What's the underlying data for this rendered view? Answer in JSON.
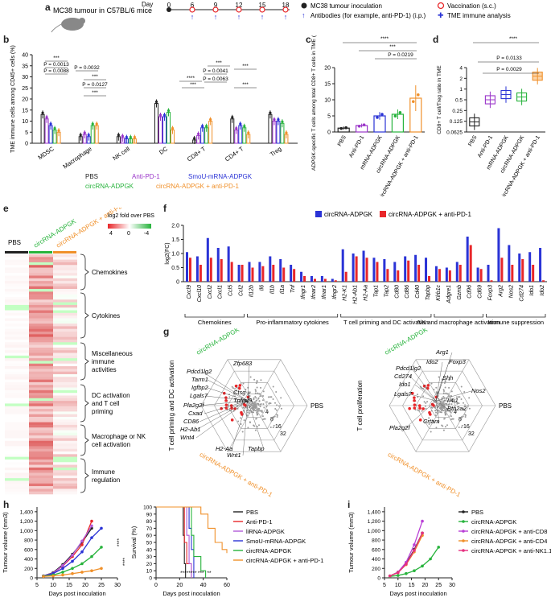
{
  "panel_labels": [
    "a",
    "b",
    "c",
    "d",
    "e",
    "f",
    "g",
    "h",
    "i"
  ],
  "colors": {
    "pbs": "#222222",
    "anti_pd1": "#9a35c9",
    "smou": "#2a33d6",
    "circ": "#27b33c",
    "combo": "#f0902a",
    "red": "#e8272a",
    "lirna": "#b25ad9",
    "cd8": "#b93fd6",
    "cd4": "#f0902a",
    "nk": "#e6307f"
  },
  "panel_a": {
    "mouse_label": "MC38 tumour in C57BL/6 mice",
    "day_label": "Day",
    "days": [
      "0",
      "6",
      "9",
      "12",
      "15",
      "18"
    ],
    "legend": [
      "MC38 tumour inoculation",
      "Antibodies (for example, anti-PD-1) (i.p.)",
      "Vaccination (s.c.)",
      "TME immune analysis"
    ]
  },
  "chart_data": [
    {
      "id": "b",
      "type": "bar",
      "ylabel": "TME immune cells among CD45+ cells (%)",
      "ylim": [
        0,
        40
      ],
      "yticks": [
        "0",
        "5",
        "10",
        "15",
        "20",
        "25",
        "30",
        "35",
        "40"
      ],
      "categories": [
        "MDSC",
        "Macrophage",
        "NK cell",
        "DC",
        "CD8+ T",
        "CD4+ T",
        "Treg"
      ],
      "series": [
        {
          "name": "PBS",
          "values": [
            13,
            3,
            3,
            18,
            1.5,
            11,
            13
          ]
        },
        {
          "name": "Anti-PD-1",
          "values": [
            11,
            4,
            2.5,
            12,
            3.5,
            6,
            10
          ]
        },
        {
          "name": "SmoU-mRNA-ADPGK",
          "values": [
            8,
            3,
            2,
            12,
            7,
            8,
            10
          ]
        },
        {
          "name": "circRNA-ADPGK",
          "values": [
            6,
            8,
            2,
            14,
            7,
            7,
            9
          ]
        },
        {
          "name": "circRNA-ADPGK + anti-PD-1",
          "values": [
            5,
            8,
            2,
            6,
            10,
            4,
            4
          ]
        }
      ],
      "pvalues": [
        "***",
        "P = 0.0013",
        "P = 0.0088",
        "P = 0.0032",
        "***",
        "P = 0.0127",
        "***",
        "****",
        "***",
        "***",
        "P = 0.0041",
        "P = 0.0063",
        "***",
        "***"
      ],
      "legend": [
        "PBS",
        "Anti-PD-1",
        "SmoU-mRNA-ADPGK",
        "circRNA-ADPGK",
        "circRNA-ADPGK + anti-PD-1"
      ]
    },
    {
      "id": "c",
      "type": "bar",
      "ylabel": "ADPGK-specific T cells among total CD8+ T cells in TME (%)",
      "ylim": [
        0,
        20
      ],
      "yticks": [
        "0",
        "5",
        "10",
        "15",
        "20"
      ],
      "categories": [
        "PBS",
        "Anti-PD-1",
        "mRNA-ADPGK",
        "circRNA-ADPGK",
        "circRNA-ADPGK + anti-PD-1"
      ],
      "values": [
        1.2,
        2.0,
        5.0,
        5.5,
        10.5
      ],
      "errors": [
        0.5,
        0.6,
        1.2,
        1.5,
        4.0
      ],
      "pvalues": [
        "****",
        "***",
        "P = 0.0219"
      ]
    },
    {
      "id": "d",
      "type": "box",
      "ylabel": "CD8+ T cell/Treg ratio in TME",
      "yscale": "log2",
      "yticks": [
        "0.0625",
        "0.125",
        "0.25",
        "0.5",
        "1",
        "2",
        "4"
      ],
      "categories": [
        "PBS",
        "Anti-PD-1",
        "mRNA-ADPGK",
        "circRNA-ADPGK",
        "circRNA-ADPGK + anti-PD-1"
      ],
      "medians": [
        0.12,
        0.5,
        0.7,
        0.6,
        2.3
      ],
      "pvalues": [
        "****",
        "P = 0.0133",
        "P = 0.0029"
      ]
    },
    {
      "id": "e",
      "type": "heatmap",
      "columns": [
        "PBS",
        "circRNA-ADPGK",
        "circRNA-ADPGK + anti-PD-1"
      ],
      "legend_title": "log2 fold over PBS",
      "legend_ticks": [
        "4",
        "0",
        "-4"
      ],
      "groups": [
        "Chemokines",
        "Cytokines",
        "Miscellaneous immune activities",
        "DC activation and T cell priming",
        "Macrophage or NK cell activation",
        "Immune regulation"
      ]
    },
    {
      "id": "f",
      "type": "bar",
      "ylabel": "log2(FC)",
      "ylim": [
        0,
        2
      ],
      "yticks": [
        "0",
        "0.5",
        "1.0",
        "1.5",
        "2.0"
      ],
      "categories": [
        "Cxcl9",
        "Cxcl10",
        "Cxcl2",
        "Cxcl1",
        "Ccl5",
        "Ccl2",
        "Il12b",
        "Il6",
        "Il1b",
        "Il1a",
        "Tnf",
        "Ifngr1",
        "Ifnar2",
        "Ifnar1",
        "Ifngr2",
        "H2-K1",
        "H2-Ab1",
        "H2-Aa",
        "Tap1",
        "Tap2",
        "Cd80",
        "Cd86",
        "Cd40",
        "Tapbp",
        "Klrb1c",
        "Adgre1",
        "Gzmb",
        "Cd96",
        "Cd69",
        "Foxp3",
        "Arg2",
        "Nos2",
        "Cd274",
        "Ido1",
        "Ido2"
      ],
      "series": [
        {
          "name": "circRNA-ADPGK",
          "values": [
            1.05,
            0.9,
            1.55,
            1.2,
            1.25,
            0.6,
            0.7,
            0.7,
            0.9,
            0.8,
            0.6,
            0.35,
            0.2,
            0.2,
            0.1,
            1.15,
            1.0,
            1.1,
            0.85,
            0.8,
            0.7,
            0.9,
            0.95,
            0.85,
            0.55,
            0.5,
            0.7,
            1.6,
            0.5,
            0.6,
            1.9,
            1.3,
            1.0,
            1.05,
            1.2
          ]
        },
        {
          "name": "circRNA-ADPGK + anti-PD-1",
          "values": [
            0.85,
            0.6,
            0.85,
            0.8,
            0.7,
            0.6,
            0.5,
            0.55,
            0.6,
            0.5,
            0.45,
            0.2,
            0.1,
            0.1,
            0.05,
            0.35,
            0.9,
            0.85,
            0.7,
            0.45,
            0.4,
            0.75,
            0.6,
            0.2,
            0.45,
            0.4,
            0.6,
            1.3,
            0.45,
            0.05,
            0.85,
            0.6,
            0.8,
            0.6,
            0.05
          ]
        }
      ],
      "groups": [
        "Chemokines",
        "Pro-inflammatory cytokines",
        "T cell priming and DC activation",
        "NK and macrophage activation",
        "Immune suppression"
      ]
    },
    {
      "id": "g1",
      "type": "scatter",
      "title": "T cell priming and DC activation",
      "axes": [
        "circRNA-ADPGK",
        "PBS",
        "circRNA-ADPGK + anti-PD-1"
      ],
      "rings": [
        "4",
        "8",
        "16",
        "32"
      ],
      "labels": [
        "Zfp683",
        "Pdcd1lg2",
        "Tarm1",
        "Igfbp2",
        "Lgals7",
        "Ctsg",
        "Pla2g2f",
        "Cxad",
        "CD86",
        "H2-Ab1",
        "Wnt4",
        "H2-Aa",
        "Wnt1",
        "Tapbp",
        "Tnfrsf9"
      ]
    },
    {
      "id": "g2",
      "type": "scatter",
      "title": "T cell proliferation",
      "axes": [
        "circRNA-ADPGK",
        "PBS",
        "circRNA-ADPGK + anti-PD-1"
      ],
      "rings": [
        "4",
        "8",
        "16",
        "32"
      ],
      "labels": [
        "Arg1",
        "Ido2",
        "Foxp3",
        "Pdcd1lg2",
        "Cd274",
        "Ido1",
        "Lgals7",
        "Shh",
        "Nos2",
        "Il4i1",
        "Btn2a2",
        "Pla2g2f",
        "Crtam"
      ]
    },
    {
      "id": "h1",
      "type": "line",
      "xlabel": "Days post inoculation",
      "ylabel": "Tumour volume (mm3)",
      "xlim": [
        5,
        30
      ],
      "ylim": [
        0,
        1500
      ],
      "xticks": [
        "5",
        "10",
        "15",
        "20",
        "25",
        "30"
      ],
      "yticks": [
        "0",
        "200",
        "400",
        "600",
        "800",
        "1,000",
        "1,200",
        "1,400"
      ],
      "x": [
        7,
        10,
        13,
        16,
        19,
        22,
        25
      ],
      "series": [
        {
          "name": "PBS",
          "values": [
            40,
            110,
            280,
            500,
            750,
            1050,
            null
          ]
        },
        {
          "name": "Anti-PD-1",
          "values": [
            40,
            100,
            250,
            450,
            700,
            1200,
            null
          ]
        },
        {
          "name": "liRNA-ADPGK",
          "values": [
            40,
            100,
            260,
            480,
            780,
            1100,
            null
          ]
        },
        {
          "name": "SmoU-mRNA-ADPGK",
          "values": [
            40,
            90,
            200,
            350,
            550,
            850,
            1050
          ]
        },
        {
          "name": "circRNA-ADPGK",
          "values": [
            35,
            60,
            120,
            200,
            300,
            450,
            650
          ]
        },
        {
          "name": "circRNA-ADPGK + anti-PD-1",
          "values": [
            30,
            40,
            60,
            90,
            120,
            150,
            200
          ]
        }
      ],
      "annotations": [
        "****",
        "****"
      ]
    },
    {
      "id": "h2",
      "type": "line",
      "xlabel": "Days post inoculation",
      "ylabel": "Survival (%)",
      "xlim": [
        0,
        60
      ],
      "ylim": [
        0,
        100
      ],
      "xticks": [
        "0",
        "20",
        "40",
        "60"
      ],
      "yticks": [
        "0",
        "10",
        "20",
        "30",
        "40",
        "50",
        "60",
        "70",
        "80",
        "90",
        "100"
      ],
      "legend": [
        "PBS",
        "Anti-PD-1",
        "liRNA-ADPGK",
        "SmoU-mRNA-ADPGK",
        "circRNA-ADPGK",
        "circRNA-ADPGK + anti-PD-1"
      ],
      "annotations": [
        "****",
        "****",
        "***",
        "**"
      ]
    },
    {
      "id": "i",
      "type": "line",
      "xlabel": "Days post inoculation",
      "ylabel": "Tumour volume (mm3)",
      "xlim": [
        5,
        30
      ],
      "ylim": [
        0,
        1500
      ],
      "xticks": [
        "5",
        "10",
        "15",
        "20",
        "25",
        "30"
      ],
      "yticks": [
        "0",
        "200",
        "400",
        "600",
        "800",
        "1,000",
        "1,200",
        "1,400"
      ],
      "x": [
        7,
        10,
        13,
        16,
        19,
        22,
        25
      ],
      "series": [
        {
          "name": "PBS",
          "values": [
            40,
            120,
            300,
            600,
            950,
            null,
            null
          ]
        },
        {
          "name": "circRNA-ADPGK",
          "values": [
            30,
            50,
            90,
            150,
            250,
            400,
            650
          ]
        },
        {
          "name": "circRNA-ADPGK + anti-CD8",
          "values": [
            40,
            120,
            330,
            700,
            1200,
            null,
            null
          ]
        },
        {
          "name": "circRNA-ADPGK + anti-CD4",
          "values": [
            40,
            110,
            280,
            550,
            900,
            null,
            null
          ]
        },
        {
          "name": "circRNA-ADPGK + anti-NK1.1",
          "values": [
            40,
            110,
            290,
            580,
            950,
            null,
            null
          ]
        }
      ]
    }
  ]
}
